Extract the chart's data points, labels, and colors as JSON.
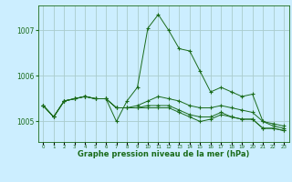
{
  "background_color": "#cceeff",
  "grid_color": "#aacccc",
  "line_color": "#1a6b1a",
  "xlabel": "Graphe pression niveau de la mer (hPa)",
  "ylim": [
    1004.55,
    1007.55
  ],
  "yticks": [
    1005,
    1006,
    1007
  ],
  "xlim": [
    -0.5,
    23.5
  ],
  "xticks": [
    0,
    1,
    2,
    3,
    4,
    5,
    6,
    7,
    8,
    9,
    10,
    11,
    12,
    13,
    14,
    15,
    16,
    17,
    18,
    19,
    20,
    21,
    22,
    23
  ],
  "series": [
    [
      1005.35,
      1005.1,
      1005.45,
      1005.5,
      1005.55,
      1005.5,
      1005.5,
      1005.0,
      1005.45,
      1005.75,
      1007.05,
      1007.35,
      1007.0,
      1006.6,
      1006.55,
      1006.1,
      1005.65,
      1005.75,
      1005.65,
      1005.55,
      1005.6,
      1005.0,
      1004.9,
      1004.85
    ],
    [
      1005.35,
      1005.1,
      1005.45,
      1005.5,
      1005.55,
      1005.5,
      1005.5,
      1005.3,
      1005.3,
      1005.3,
      1005.3,
      1005.3,
      1005.3,
      1005.2,
      1005.1,
      1005.0,
      1005.05,
      1005.15,
      1005.1,
      1005.05,
      1005.05,
      1004.85,
      1004.85,
      1004.8
    ],
    [
      1005.35,
      1005.1,
      1005.45,
      1005.5,
      1005.55,
      1005.5,
      1005.5,
      1005.3,
      1005.3,
      1005.3,
      1005.35,
      1005.35,
      1005.35,
      1005.25,
      1005.15,
      1005.1,
      1005.1,
      1005.2,
      1005.1,
      1005.05,
      1005.05,
      1004.85,
      1004.85,
      1004.8
    ],
    [
      1005.35,
      1005.1,
      1005.45,
      1005.5,
      1005.55,
      1005.5,
      1005.5,
      1005.3,
      1005.3,
      1005.35,
      1005.45,
      1005.55,
      1005.5,
      1005.45,
      1005.35,
      1005.3,
      1005.3,
      1005.35,
      1005.3,
      1005.25,
      1005.2,
      1005.0,
      1004.95,
      1004.9
    ]
  ]
}
